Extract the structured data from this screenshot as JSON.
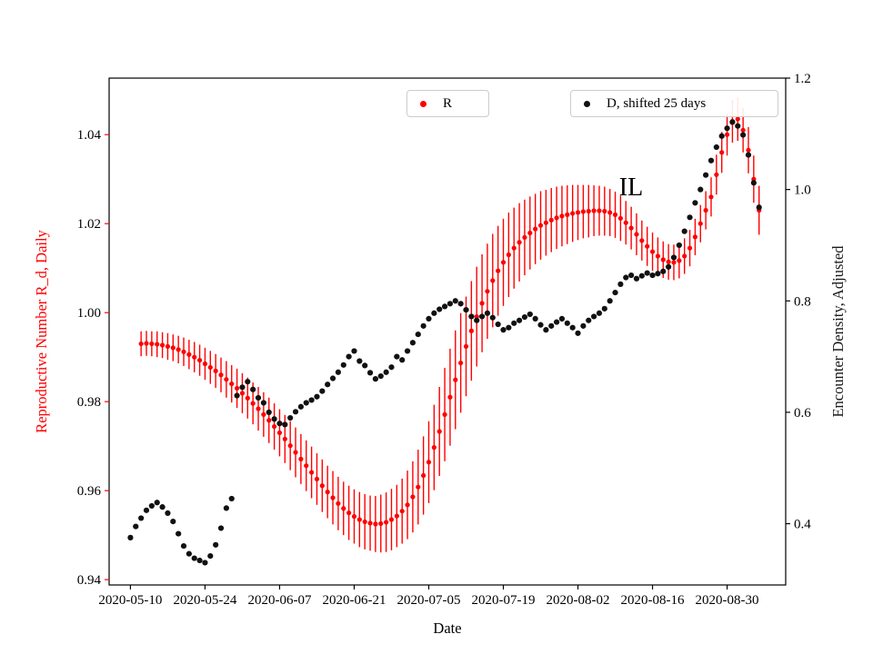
{
  "figure": {
    "xlabel": "Date",
    "ylabel_left": "Reproductive Number R_d, Daily",
    "ylabel_right": "Encounter Density, Adjusted",
    "annotation": "IL",
    "legend_r_label": "R",
    "legend_d_label": "D, shifted 25 days",
    "colors": {
      "r_series": "#ff0000",
      "d_series": "#111111",
      "axis": "#000000",
      "legend_border": "#cccccc"
    }
  },
  "chart_data": {
    "type": "scatter",
    "title": "",
    "annotation": {
      "text": "IL"
    },
    "legend": [
      {
        "label": "R",
        "color": "#ff0000"
      },
      {
        "label": "D, shifted 25 days",
        "color": "#111111"
      }
    ],
    "x_axis": {
      "label": "Date",
      "epoch": "2020-05-10",
      "xlim_days": [
        -4,
        123
      ],
      "tick_days": [
        0,
        14,
        28,
        42,
        56,
        70,
        84,
        98,
        112
      ],
      "tick_labels": [
        "2020-05-10",
        "2020-05-24",
        "2020-06-07",
        "2020-06-21",
        "2020-07-05",
        "2020-07-19",
        "2020-08-02",
        "2020-08-16",
        "2020-08-30"
      ]
    },
    "y_axis_left": {
      "label": "Reproductive Number R_d, Daily",
      "color": "#ff0000",
      "ylim": [
        0.9388,
        1.0527
      ],
      "tick_values": [
        0.94,
        0.96,
        0.98,
        1.0,
        1.02,
        1.04
      ],
      "tick_labels": [
        "0.94",
        "0.96",
        "0.98",
        "1.00",
        "1.02",
        "1.04"
      ]
    },
    "y_axis_right": {
      "label": "Encounter Density, Adjusted",
      "color": "#1a1a1a",
      "ylim": [
        0.29,
        1.2
      ],
      "tick_values": [
        0.4,
        0.6,
        0.8,
        1.0,
        1.2
      ],
      "tick_labels": [
        "0.4",
        "0.6",
        "0.8",
        "1.0",
        "1.2"
      ]
    },
    "series": [
      {
        "name": "R",
        "axis": "left",
        "color": "#ff0000",
        "marker": "circle",
        "cadence": "daily",
        "start_date": "2020-05-12",
        "start_day": 2,
        "values": [
          0.993,
          0.9931,
          0.993,
          0.9929,
          0.9927,
          0.9924,
          0.9921,
          0.9917,
          0.9912,
          0.9906,
          0.99,
          0.9893,
          0.9885,
          0.9877,
          0.9869,
          0.986,
          0.985,
          0.984,
          0.983,
          0.9819,
          0.9808,
          0.9796,
          0.9784,
          0.9771,
          0.9758,
          0.9744,
          0.973,
          0.9716,
          0.9701,
          0.9686,
          0.9671,
          0.9656,
          0.9641,
          0.9626,
          0.9611,
          0.9597,
          0.9584,
          0.9571,
          0.956,
          0.955,
          0.9542,
          0.9535,
          0.953,
          0.9527,
          0.9525,
          0.9526,
          0.9529,
          0.9535,
          0.9543,
          0.9554,
          0.9568,
          0.9586,
          0.9608,
          0.9634,
          0.9664,
          0.9697,
          0.9733,
          0.9771,
          0.981,
          0.9849,
          0.9887,
          0.9924,
          0.9959,
          0.9991,
          1.0021,
          1.0048,
          1.0072,
          1.0094,
          1.0113,
          1.013,
          1.0145,
          1.0158,
          1.0169,
          1.0179,
          1.0188,
          1.0196,
          1.0202,
          1.0208,
          1.0213,
          1.0217,
          1.022,
          1.0223,
          1.0225,
          1.0227,
          1.0228,
          1.0229,
          1.0229,
          1.0228,
          1.0225,
          1.022,
          1.0212,
          1.0202,
          1.019,
          1.0176,
          1.0162,
          1.0149,
          1.0137,
          1.0127,
          1.0119,
          1.0114,
          1.0113,
          1.0117,
          1.0127,
          1.0145,
          1.017,
          1.02,
          1.023,
          1.026,
          1.031,
          1.036,
          1.04,
          1.043,
          1.0435,
          1.041,
          1.0365,
          1.03,
          1.023
        ],
        "errors": [
          0.0028,
          0.0028,
          0.0028,
          0.0029,
          0.0029,
          0.003,
          0.003,
          0.0031,
          0.0032,
          0.0033,
          0.0034,
          0.0035,
          0.0036,
          0.0037,
          0.0038,
          0.0039,
          0.0041,
          0.0042,
          0.0044,
          0.0045,
          0.0046,
          0.0047,
          0.0049,
          0.005,
          0.0051,
          0.0052,
          0.0053,
          0.0054,
          0.0055,
          0.0056,
          0.0056,
          0.0057,
          0.0058,
          0.0058,
          0.0059,
          0.0059,
          0.006,
          0.006,
          0.006,
          0.0061,
          0.0061,
          0.0062,
          0.0062,
          0.0062,
          0.0063,
          0.0065,
          0.0067,
          0.0069,
          0.007,
          0.0073,
          0.0077,
          0.008,
          0.0084,
          0.0088,
          0.0092,
          0.0096,
          0.01,
          0.0105,
          0.0109,
          0.0111,
          0.0112,
          0.0112,
          0.0112,
          0.0112,
          0.011,
          0.0107,
          0.0105,
          0.0101,
          0.0098,
          0.0095,
          0.0091,
          0.0088,
          0.0085,
          0.0082,
          0.0079,
          0.0077,
          0.0074,
          0.0072,
          0.007,
          0.0068,
          0.0066,
          0.0064,
          0.0062,
          0.006,
          0.0059,
          0.0057,
          0.0056,
          0.0055,
          0.0053,
          0.0052,
          0.0051,
          0.0049,
          0.0048,
          0.0047,
          0.0045,
          0.0044,
          0.0043,
          0.0042,
          0.0041,
          0.004,
          0.004,
          0.004,
          0.004,
          0.0041,
          0.0041,
          0.0042,
          0.0043,
          0.0044,
          0.0045,
          0.0046,
          0.0047,
          0.0048,
          0.0049,
          0.005,
          0.0052,
          0.0053,
          0.0055
        ]
      },
      {
        "name": "D, shifted 25 days",
        "axis": "right",
        "color": "#111111",
        "marker": "circle",
        "cadence": "daily",
        "start_date": "2020-05-10",
        "start_day": 0,
        "values": [
          0.375,
          0.395,
          0.41,
          0.424,
          0.432,
          0.438,
          0.43,
          0.419,
          0.404,
          0.382,
          0.36,
          0.346,
          0.338,
          0.334,
          0.33,
          0.342,
          0.362,
          0.392,
          0.428,
          0.445,
          0.63,
          0.645,
          0.655,
          0.641,
          0.626,
          0.617,
          0.6,
          0.588,
          0.58,
          0.578,
          0.59,
          0.601,
          0.61,
          0.617,
          0.622,
          0.628,
          0.638,
          0.65,
          0.661,
          0.672,
          0.685,
          0.7,
          0.71,
          0.692,
          0.684,
          0.671,
          0.66,
          0.665,
          0.672,
          0.681,
          0.7,
          0.694,
          0.71,
          0.725,
          0.74,
          0.755,
          0.768,
          0.778,
          0.785,
          0.79,
          0.795,
          0.8,
          0.795,
          0.784,
          0.772,
          0.765,
          0.772,
          0.778,
          0.77,
          0.758,
          0.748,
          0.752,
          0.76,
          0.765,
          0.771,
          0.776,
          0.768,
          0.757,
          0.748,
          0.755,
          0.762,
          0.768,
          0.76,
          0.752,
          0.742,
          0.755,
          0.765,
          0.772,
          0.778,
          0.786,
          0.8,
          0.815,
          0.83,
          0.842,
          0.846,
          0.84,
          0.845,
          0.85,
          0.846,
          0.849,
          0.853,
          0.861,
          0.878,
          0.9,
          0.925,
          0.95,
          0.976,
          1.0,
          1.026,
          1.052,
          1.076,
          1.096,
          1.11,
          1.121,
          1.114,
          1.098,
          1.062,
          1.012,
          0.968
        ]
      }
    ]
  }
}
